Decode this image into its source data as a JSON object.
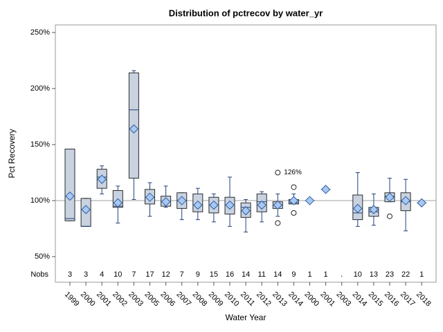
{
  "chart_data": {
    "type": "box",
    "title": "Distribution of pctrecov by water_yr",
    "ylabel": "Pct Recovery",
    "xlabel": "Water Year",
    "categories": [
      "1999",
      "2000",
      "2001",
      "2002",
      "2003",
      "2005",
      "2006",
      "2007",
      "2008",
      "2009",
      "2010",
      "2011",
      "2012",
      "2013",
      "2014",
      "2000",
      "2001",
      "2003",
      "2014",
      "2015",
      "2016",
      "2017",
      "2018"
    ],
    "min": [
      82,
      77,
      106,
      80,
      101,
      86,
      94,
      83,
      83,
      81,
      77,
      72,
      81,
      86,
      97,
      100,
      110,
      null,
      77,
      78,
      99,
      73,
      98
    ],
    "q1": [
      82,
      77,
      111,
      94,
      120,
      97,
      95,
      93,
      90,
      89,
      88,
      85,
      90,
      93,
      97,
      100,
      110,
      null,
      83,
      86,
      99,
      91,
      98
    ],
    "median": [
      84,
      77,
      121,
      95,
      181,
      103,
      99,
      100,
      96,
      96,
      96,
      94,
      99,
      96,
      98,
      100,
      110,
      null,
      89,
      90,
      104,
      99,
      98
    ],
    "q3": [
      146,
      102,
      128,
      109,
      214,
      110,
      104,
      107,
      106,
      103,
      103,
      98,
      106,
      99,
      101,
      100,
      110,
      null,
      105,
      94,
      107,
      107,
      98
    ],
    "max": [
      146,
      102,
      131,
      113,
      216,
      116,
      113,
      107,
      111,
      106,
      121,
      101,
      108,
      106,
      106,
      100,
      110,
      null,
      125,
      106,
      120,
      119,
      98
    ],
    "mean": [
      104,
      92,
      119,
      98,
      164,
      103,
      99,
      100,
      96,
      96,
      96,
      91,
      96,
      96,
      100,
      100,
      110,
      null,
      93,
      92,
      103,
      100,
      98
    ],
    "outliers": [
      [],
      [],
      [],
      [],
      [],
      [],
      [],
      [],
      [],
      [],
      [],
      [],
      [],
      [
        125,
        80
      ],
      [
        112,
        89
      ],
      [],
      [],
      [],
      [],
      [],
      [
        86
      ],
      [],
      []
    ],
    "outlier_annotation": "126%",
    "nobs_label": "Nobs",
    "nobs": [
      3,
      3,
      4,
      10,
      7,
      17,
      12,
      7,
      9,
      15,
      16,
      14,
      11,
      14,
      9,
      1,
      1,
      ".",
      10,
      13,
      23,
      22,
      1
    ],
    "refline": 100,
    "box_color": "#c8d2e0",
    "line_color": "#1f3f7a",
    "mean_color": "#a9c8f0",
    "ylim": [
      27.2,
      256.8
    ],
    "yticks": [
      {
        "value": 50,
        "label": "50%"
      },
      {
        "value": 100,
        "label": "100%"
      },
      {
        "value": 150,
        "label": "150%"
      },
      {
        "value": 200,
        "label": "200%"
      },
      {
        "value": 250,
        "label": "250%"
      }
    ]
  }
}
